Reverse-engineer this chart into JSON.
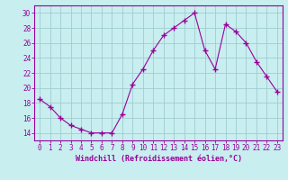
{
  "x": [
    0,
    1,
    2,
    3,
    4,
    5,
    6,
    7,
    8,
    9,
    10,
    11,
    12,
    13,
    14,
    15,
    16,
    17,
    18,
    19,
    20,
    21,
    22,
    23
  ],
  "y": [
    18.5,
    17.5,
    16.0,
    15.0,
    14.5,
    14.0,
    14.0,
    14.0,
    16.5,
    20.5,
    22.5,
    25.0,
    27.0,
    28.0,
    29.0,
    30.0,
    25.0,
    22.5,
    28.5,
    27.5,
    26.0,
    23.5,
    21.5,
    19.5
  ],
  "line_color": "#990099",
  "marker": "+",
  "marker_size": 4,
  "background_color": "#c8eef0",
  "grid_color": "#a0ccd0",
  "xlabel": "Windchill (Refroidissement éolien,°C)",
  "ylim": [
    13,
    31
  ],
  "yticks": [
    14,
    16,
    18,
    20,
    22,
    24,
    26,
    28,
    30
  ],
  "xlim": [
    -0.5,
    23.5
  ],
  "xticks": [
    0,
    1,
    2,
    3,
    4,
    5,
    6,
    7,
    8,
    9,
    10,
    11,
    12,
    13,
    14,
    15,
    16,
    17,
    18,
    19,
    20,
    21,
    22,
    23
  ],
  "spine_color": "#990099",
  "tick_color": "#990099",
  "label_color": "#990099",
  "tick_label_fontsize": 5.5,
  "xlabel_fontsize": 6.0
}
